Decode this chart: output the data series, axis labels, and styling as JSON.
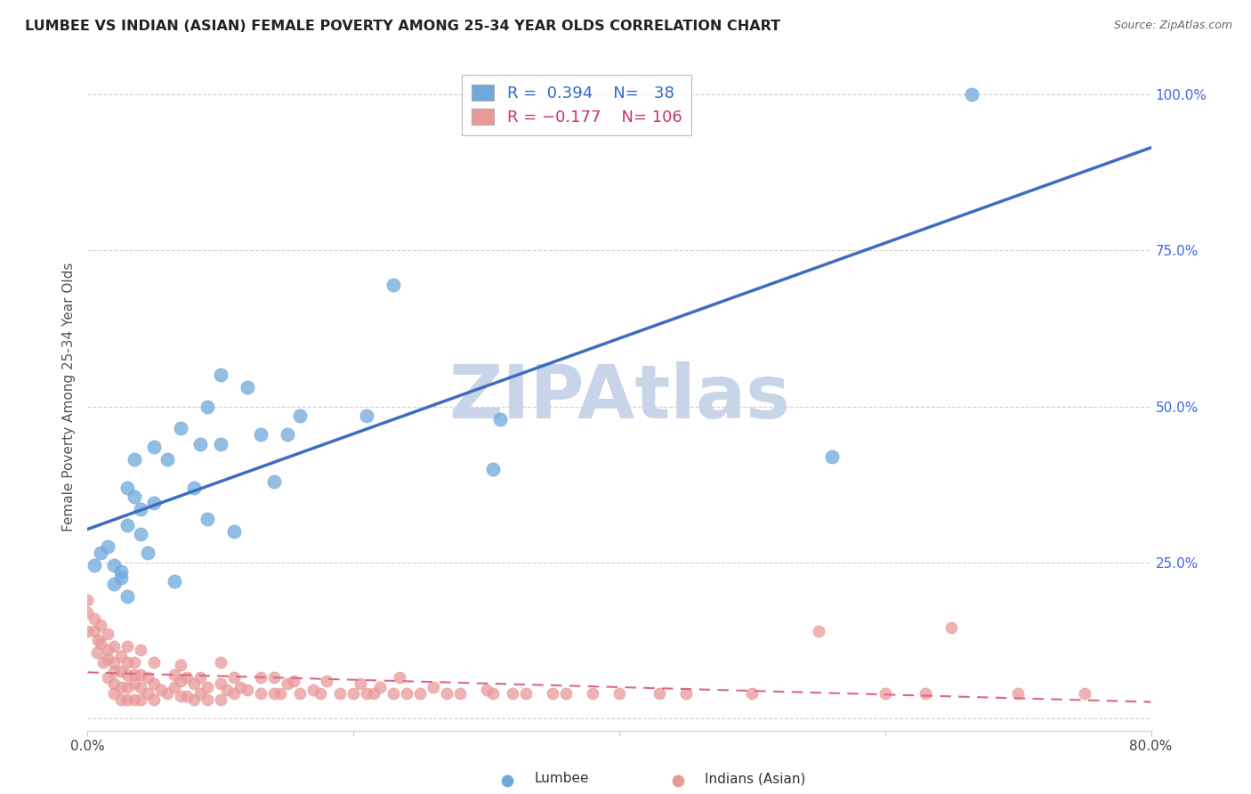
{
  "title": "LUMBEE VS INDIAN (ASIAN) FEMALE POVERTY AMONG 25-34 YEAR OLDS CORRELATION CHART",
  "source": "Source: ZipAtlas.com",
  "ylabel": "Female Poverty Among 25-34 Year Olds",
  "xlim": [
    0.0,
    0.8
  ],
  "ylim": [
    -0.02,
    1.05
  ],
  "xtick_positions": [
    0.0,
    0.2,
    0.4,
    0.6,
    0.8
  ],
  "xticklabels": [
    "0.0%",
    "",
    "",
    "",
    "80.0%"
  ],
  "ytick_positions": [
    0.0,
    0.25,
    0.5,
    0.75,
    1.0
  ],
  "yticklabels": [
    "",
    "25.0%",
    "50.0%",
    "75.0%",
    "100.0%"
  ],
  "lumbee_color": "#6fa8dc",
  "asian_color": "#ea9999",
  "lumbee_line_color": "#3d6dbf",
  "asian_line_color": "#d9688a",
  "watermark": "ZIPAtlas",
  "watermark_color": "#c8d4e8",
  "background_color": "#ffffff",
  "lumbee_x": [
    0.005,
    0.01,
    0.015,
    0.02,
    0.02,
    0.025,
    0.025,
    0.03,
    0.03,
    0.03,
    0.035,
    0.035,
    0.04,
    0.04,
    0.045,
    0.05,
    0.05,
    0.06,
    0.065,
    0.07,
    0.08,
    0.085,
    0.09,
    0.09,
    0.1,
    0.1,
    0.11,
    0.12,
    0.13,
    0.14,
    0.15,
    0.16,
    0.21,
    0.23,
    0.31,
    0.56,
    0.305,
    0.665
  ],
  "lumbee_y": [
    0.245,
    0.265,
    0.275,
    0.215,
    0.245,
    0.225,
    0.235,
    0.195,
    0.31,
    0.37,
    0.355,
    0.415,
    0.295,
    0.335,
    0.265,
    0.345,
    0.435,
    0.415,
    0.22,
    0.465,
    0.37,
    0.44,
    0.32,
    0.5,
    0.44,
    0.55,
    0.3,
    0.53,
    0.455,
    0.38,
    0.455,
    0.485,
    0.485,
    0.695,
    0.48,
    0.42,
    0.4,
    1.0
  ],
  "asian_x": [
    0.0,
    0.0,
    0.0,
    0.005,
    0.005,
    0.007,
    0.008,
    0.01,
    0.01,
    0.012,
    0.015,
    0.015,
    0.015,
    0.015,
    0.02,
    0.02,
    0.02,
    0.02,
    0.02,
    0.025,
    0.025,
    0.025,
    0.025,
    0.03,
    0.03,
    0.03,
    0.03,
    0.03,
    0.035,
    0.035,
    0.035,
    0.035,
    0.04,
    0.04,
    0.04,
    0.04,
    0.045,
    0.045,
    0.05,
    0.05,
    0.05,
    0.055,
    0.06,
    0.065,
    0.065,
    0.07,
    0.07,
    0.07,
    0.075,
    0.075,
    0.08,
    0.08,
    0.085,
    0.085,
    0.09,
    0.09,
    0.1,
    0.1,
    0.1,
    0.105,
    0.11,
    0.11,
    0.115,
    0.12,
    0.13,
    0.13,
    0.14,
    0.14,
    0.145,
    0.15,
    0.155,
    0.16,
    0.17,
    0.175,
    0.18,
    0.19,
    0.2,
    0.205,
    0.21,
    0.215,
    0.22,
    0.23,
    0.235,
    0.24,
    0.25,
    0.26,
    0.27,
    0.28,
    0.3,
    0.305,
    0.32,
    0.33,
    0.35,
    0.36,
    0.38,
    0.4,
    0.43,
    0.45,
    0.5,
    0.55,
    0.6,
    0.63,
    0.65,
    0.7,
    0.75
  ],
  "asian_y": [
    0.17,
    0.14,
    0.19,
    0.14,
    0.16,
    0.105,
    0.125,
    0.12,
    0.15,
    0.09,
    0.065,
    0.095,
    0.11,
    0.135,
    0.04,
    0.055,
    0.075,
    0.09,
    0.115,
    0.03,
    0.05,
    0.075,
    0.1,
    0.03,
    0.05,
    0.07,
    0.09,
    0.115,
    0.03,
    0.055,
    0.07,
    0.09,
    0.03,
    0.05,
    0.07,
    0.11,
    0.04,
    0.065,
    0.03,
    0.055,
    0.09,
    0.045,
    0.04,
    0.05,
    0.07,
    0.035,
    0.06,
    0.085,
    0.035,
    0.065,
    0.03,
    0.055,
    0.04,
    0.065,
    0.03,
    0.05,
    0.03,
    0.055,
    0.09,
    0.045,
    0.04,
    0.065,
    0.05,
    0.045,
    0.04,
    0.065,
    0.04,
    0.065,
    0.04,
    0.055,
    0.06,
    0.04,
    0.045,
    0.04,
    0.06,
    0.04,
    0.04,
    0.055,
    0.04,
    0.04,
    0.05,
    0.04,
    0.065,
    0.04,
    0.04,
    0.05,
    0.04,
    0.04,
    0.045,
    0.04,
    0.04,
    0.04,
    0.04,
    0.04,
    0.04,
    0.04,
    0.04,
    0.04,
    0.04,
    0.14,
    0.04,
    0.04,
    0.145,
    0.04,
    0.04
  ]
}
